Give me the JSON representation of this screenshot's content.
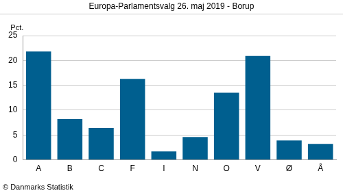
{
  "chart_data": {
    "type": "bar",
    "title": "Europa-Parlamentsvalg 26. maj 2019 - Borup",
    "y_label": "Pct.",
    "annotations": [
      "© Danmarks Statistik"
    ],
    "categories": [
      "A",
      "B",
      "C",
      "F",
      "I",
      "N",
      "O",
      "V",
      "Ø",
      "Å"
    ],
    "values": [
      21.8,
      8.2,
      6.4,
      16.3,
      1.7,
      4.6,
      13.5,
      20.9,
      3.9,
      3.2
    ],
    "color": "#005f8f",
    "ylim": [
      0,
      25
    ],
    "yticks": [
      0,
      5,
      10,
      15,
      20,
      25
    ],
    "grid": true
  }
}
